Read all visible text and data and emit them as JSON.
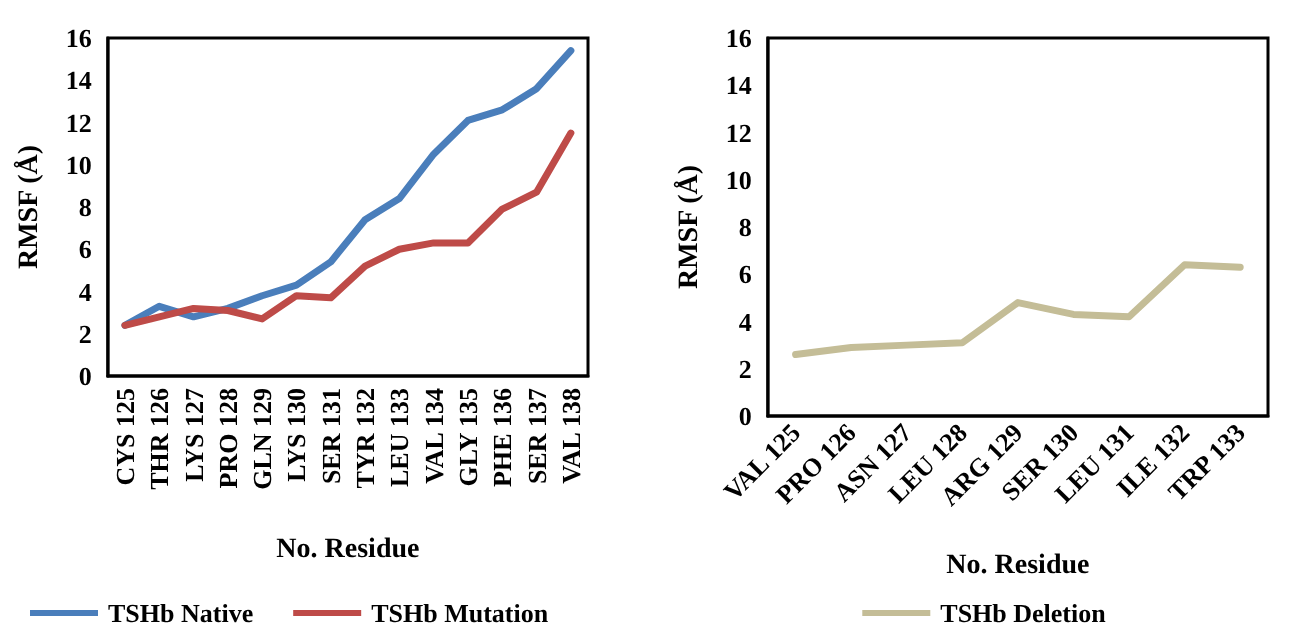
{
  "chart_data": [
    {
      "type": "line",
      "xlabel": "No. Residue",
      "ylabel": "RMSF (Å)",
      "categories": [
        "CYS 125",
        "THR 126",
        "LYS 127",
        "PRO 128",
        "GLN 129",
        "LYS 130",
        "SER 131",
        "TYR 132",
        "LEU 133",
        "VAL 134",
        "GLY 135",
        "PHE 136",
        "SER 137",
        "VAL 138"
      ],
      "series": [
        {
          "name": "TSHb Native",
          "color": "#4a7ebb",
          "values": [
            2.4,
            3.3,
            2.8,
            3.2,
            3.8,
            4.3,
            5.4,
            7.4,
            8.4,
            10.5,
            12.1,
            12.6,
            13.6,
            15.4
          ]
        },
        {
          "name": "TSHb Mutation",
          "color": "#be4b48",
          "values": [
            2.4,
            2.8,
            3.2,
            3.1,
            2.7,
            3.8,
            3.7,
            5.2,
            6.0,
            6.3,
            6.3,
            7.9,
            8.7,
            11.5
          ]
        }
      ],
      "ylim": [
        0,
        16
      ],
      "yticks": [
        0,
        2,
        4,
        6,
        8,
        10,
        12,
        14,
        16
      ],
      "grid": false,
      "legend": "bottom left",
      "marker": "none",
      "line_style": "solid"
    },
    {
      "type": "line",
      "xlabel": "No. Residue",
      "ylabel": "RMSF (Å)",
      "categories": [
        "VAL 125",
        "PRO 126",
        "ASN 127",
        "LEU 128",
        "ARG 129",
        "SER 130",
        "LEU 131",
        "ILE 132",
        "TRP 133"
      ],
      "series": [
        {
          "name": "TSHb Deletion",
          "color": "#c4bd97",
          "values": [
            2.6,
            2.9,
            3.0,
            3.1,
            4.8,
            4.3,
            4.2,
            6.4,
            6.3
          ]
        }
      ],
      "ylim": [
        0,
        16
      ],
      "yticks": [
        0,
        2,
        4,
        6,
        8,
        10,
        12,
        14,
        16
      ],
      "grid": false,
      "legend": "bottom",
      "marker": "none",
      "line_style": "solid"
    }
  ]
}
